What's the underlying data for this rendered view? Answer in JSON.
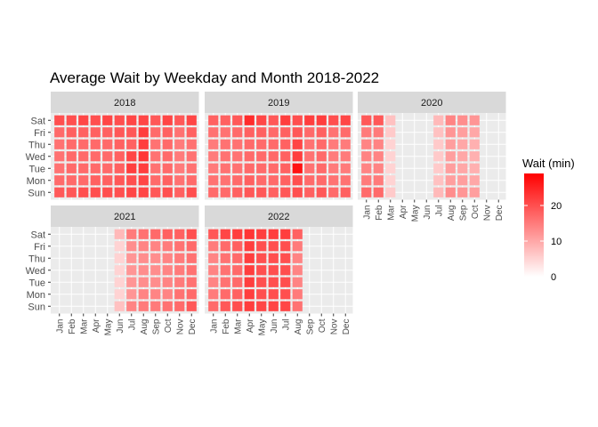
{
  "chart_data": {
    "type": "heatmap",
    "title": "Average Wait by Weekday and Month 2018-2022",
    "weekdays": [
      "Sat",
      "Fri",
      "Thu",
      "Wed",
      "Tue",
      "Mon",
      "Sun"
    ],
    "months": [
      "Jan",
      "Feb",
      "Mar",
      "Apr",
      "May",
      "Jun",
      "Jul",
      "Aug",
      "Sep",
      "Oct",
      "Nov",
      "Dec"
    ],
    "legend": {
      "title": "Wait (min)",
      "ticks": [
        0,
        10,
        20
      ],
      "range": [
        0,
        29
      ],
      "colors": {
        "low": "#ffffff",
        "high": "#ff0000"
      },
      "placement": "right"
    },
    "panels": [
      {
        "year": "2018",
        "values": [
          [
            20,
            20,
            21,
            20,
            21,
            20,
            21,
            21,
            19,
            21,
            19,
            21
          ],
          [
            17,
            18,
            18,
            18,
            18,
            19,
            19,
            22,
            17,
            18,
            16,
            18
          ],
          [
            16,
            17,
            17,
            17,
            17,
            18,
            18,
            22,
            16,
            17,
            15,
            16
          ],
          [
            16,
            17,
            17,
            17,
            17,
            18,
            21,
            23,
            16,
            17,
            15,
            16
          ],
          [
            16,
            17,
            17,
            17,
            17,
            18,
            22,
            22,
            16,
            17,
            15,
            16
          ],
          [
            17,
            17,
            17,
            18,
            18,
            19,
            20,
            21,
            17,
            18,
            16,
            17
          ],
          [
            19,
            19,
            20,
            20,
            20,
            20,
            21,
            21,
            19,
            20,
            18,
            20
          ]
        ]
      },
      {
        "year": "2019",
        "values": [
          [
            18,
            18,
            19,
            24,
            21,
            19,
            22,
            20,
            22,
            22,
            20,
            21
          ],
          [
            16,
            16,
            17,
            18,
            18,
            17,
            18,
            19,
            17,
            18,
            16,
            17
          ],
          [
            15,
            16,
            16,
            17,
            17,
            17,
            18,
            21,
            16,
            17,
            15,
            15
          ],
          [
            15,
            16,
            16,
            17,
            17,
            17,
            18,
            22,
            16,
            17,
            15,
            15
          ],
          [
            15,
            16,
            16,
            17,
            17,
            17,
            18,
            27,
            16,
            17,
            15,
            15
          ],
          [
            16,
            16,
            17,
            18,
            17,
            17,
            18,
            20,
            17,
            17,
            16,
            16
          ],
          [
            17,
            17,
            18,
            19,
            19,
            18,
            19,
            20,
            18,
            19,
            17,
            18
          ]
        ]
      },
      {
        "year": "2020",
        "values": [
          [
            19,
            19,
            7,
            null,
            null,
            null,
            8,
            14,
            13,
            12,
            null,
            null
          ],
          [
            15,
            15,
            6,
            null,
            null,
            null,
            7,
            12,
            11,
            10,
            null,
            null
          ],
          [
            14,
            14,
            5,
            null,
            null,
            null,
            6,
            11,
            10,
            9,
            null,
            null
          ],
          [
            14,
            14,
            5,
            null,
            null,
            null,
            6,
            11,
            10,
            9,
            null,
            null
          ],
          [
            14,
            14,
            5,
            null,
            null,
            null,
            6,
            11,
            10,
            9,
            null,
            null
          ],
          [
            15,
            15,
            5,
            null,
            null,
            null,
            7,
            11,
            11,
            10,
            null,
            null
          ],
          [
            17,
            17,
            6,
            null,
            null,
            null,
            8,
            13,
            12,
            11,
            null,
            null
          ]
        ]
      },
      {
        "year": "2021",
        "values": [
          [
            null,
            null,
            null,
            null,
            null,
            8,
            15,
            16,
            17,
            18,
            18,
            20
          ],
          [
            null,
            null,
            null,
            null,
            null,
            5,
            13,
            14,
            14,
            15,
            16,
            17
          ],
          [
            null,
            null,
            null,
            null,
            null,
            5,
            12,
            13,
            13,
            14,
            15,
            16
          ],
          [
            null,
            null,
            null,
            null,
            null,
            5,
            12,
            13,
            13,
            14,
            15,
            16
          ],
          [
            null,
            null,
            null,
            null,
            null,
            5,
            12,
            13,
            13,
            14,
            15,
            16
          ],
          [
            null,
            null,
            null,
            null,
            null,
            5,
            12,
            14,
            14,
            14,
            16,
            17
          ],
          [
            null,
            null,
            null,
            null,
            null,
            7,
            14,
            15,
            15,
            16,
            17,
            19
          ]
        ]
      },
      {
        "year": "2022",
        "values": [
          [
            19,
            21,
            22,
            23,
            22,
            22,
            22,
            18,
            null,
            null,
            null,
            null
          ],
          [
            15,
            17,
            18,
            22,
            20,
            20,
            20,
            15,
            null,
            null,
            null,
            null
          ],
          [
            14,
            16,
            17,
            22,
            20,
            20,
            20,
            14,
            null,
            null,
            null,
            null
          ],
          [
            14,
            16,
            17,
            22,
            20,
            20,
            20,
            14,
            null,
            null,
            null,
            null
          ],
          [
            14,
            16,
            17,
            22,
            20,
            20,
            20,
            14,
            null,
            null,
            null,
            null
          ],
          [
            15,
            17,
            18,
            22,
            20,
            20,
            20,
            15,
            null,
            null,
            null,
            null
          ],
          [
            17,
            19,
            20,
            22,
            21,
            21,
            21,
            16,
            null,
            null,
            null,
            null
          ]
        ]
      }
    ]
  }
}
